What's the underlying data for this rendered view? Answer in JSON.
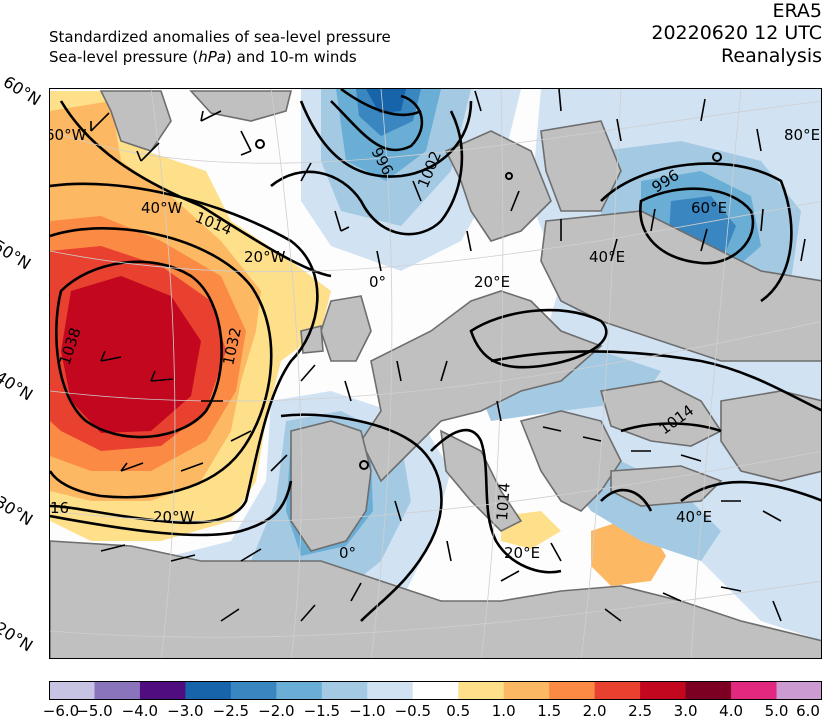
{
  "header": {
    "subtitle_line1": "Standardized anomalies of sea-level pressure",
    "subtitle_line2_prefix": "Sea-level pressure (",
    "subtitle_line2_unit": "hPa",
    "subtitle_line2_suffix": ") and 10-m winds",
    "dataset": "ERA5",
    "datetime": "20220620 12 UTC",
    "product": "Reanalysis"
  },
  "map": {
    "lat_labels": [
      "60°N",
      "50°N",
      "40°N",
      "30°N",
      "20°N"
    ],
    "lon_labels": [
      "60°W",
      "40°W",
      "20°W",
      "0°",
      "20°E",
      "40°E",
      "60°E",
      "80°E",
      "20°W",
      "0°",
      "20°E",
      "40°E"
    ],
    "isobar_labels": [
      "1038",
      "1032",
      "1014",
      "996",
      "1002",
      "996",
      "1014",
      "1014",
      "16"
    ],
    "colors": {
      "land": "#c0c0c0",
      "coast": "#6e6e6e",
      "isobar": "#000000"
    }
  },
  "colorbar": {
    "tick_labels": [
      "−6.0",
      "−5.0",
      "−4.0",
      "−3.0",
      "−2.5",
      "−2.0",
      "−1.5",
      "−1.0",
      "−0.5",
      "0.5",
      "1.0",
      "1.5",
      "2.0",
      "2.5",
      "3.0",
      "4.0",
      "5.0",
      "6.0"
    ],
    "colors": [
      "#c6c3e3",
      "#8a74bc",
      "#4f0d80",
      "#1764ab",
      "#3a86c1",
      "#6aaed6",
      "#a4cae3",
      "#d1e2f3",
      "#ffffff",
      "#fee08b",
      "#fdb863",
      "#fb8a44",
      "#e9412f",
      "#c2071f",
      "#7b0022",
      "#e0297f",
      "#cc9bd2"
    ]
  }
}
